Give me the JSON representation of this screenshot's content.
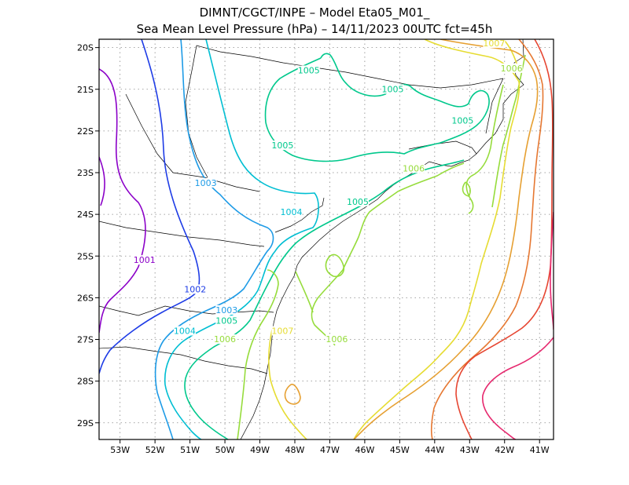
{
  "header": {
    "line1": "DIMNT/CGCT/INPE –  Model Eta05_M01_",
    "line2": "Sea Mean Level Pressure (hPa) – 14/11/2023 00UTC fct=45h"
  },
  "map": {
    "lon_range": [
      -53.6,
      -40.6
    ],
    "lat_range": [
      -29.4,
      -19.8
    ],
    "lon_ticks": [
      {
        "v": -53,
        "label": "53W"
      },
      {
        "v": -52,
        "label": "52W"
      },
      {
        "v": -51,
        "label": "51W"
      },
      {
        "v": -50,
        "label": "50W"
      },
      {
        "v": -49,
        "label": "49W"
      },
      {
        "v": -48,
        "label": "48W"
      },
      {
        "v": -47,
        "label": "47W"
      },
      {
        "v": -46,
        "label": "46W"
      },
      {
        "v": -45,
        "label": "45W"
      },
      {
        "v": -44,
        "label": "44W"
      },
      {
        "v": -43,
        "label": "43W"
      },
      {
        "v": -42,
        "label": "42W"
      },
      {
        "v": -41,
        "label": "41W"
      }
    ],
    "lat_ticks": [
      {
        "v": -20,
        "label": "20S"
      },
      {
        "v": -21,
        "label": "21S"
      },
      {
        "v": -22,
        "label": "22S"
      },
      {
        "v": -23,
        "label": "23S"
      },
      {
        "v": -24,
        "label": "24S"
      },
      {
        "v": -25,
        "label": "25S"
      },
      {
        "v": -26,
        "label": "26S"
      },
      {
        "v": -27,
        "label": "27S"
      },
      {
        "v": -28,
        "label": "28S"
      },
      {
        "v": -29,
        "label": "29S"
      }
    ],
    "grid": "dotted",
    "colors": {
      "c1001": "#8b00c8",
      "c1002": "#1e3ce6",
      "c1003": "#1e9be6",
      "c1004": "#00bed2",
      "c1005": "#00c88c",
      "c1006": "#96dc3c",
      "c1007": "#e6dc32",
      "c1008": "#e6a032",
      "c1009": "#e67832",
      "c1010": "#e64632",
      "c1011": "#e6286e"
    },
    "labels": [
      {
        "text": "1001",
        "lon": -52.3,
        "lat": -25.15,
        "color": "#8b00c8"
      },
      {
        "text": "1002",
        "lon": -50.85,
        "lat": -25.85,
        "color": "#1e3ce6"
      },
      {
        "text": "1003",
        "lon": -50.55,
        "lat": -23.3,
        "color": "#1e9be6"
      },
      {
        "text": "1003",
        "lon": -49.95,
        "lat": -26.35,
        "color": "#1e9be6"
      },
      {
        "text": "1004",
        "lon": -51.15,
        "lat": -26.85,
        "color": "#00bed2"
      },
      {
        "text": "1004",
        "lon": -48.1,
        "lat": -24.0,
        "color": "#00bed2"
      },
      {
        "text": "1005",
        "lon": -47.6,
        "lat": -20.6,
        "color": "#00c88c"
      },
      {
        "text": "1005",
        "lon": -45.2,
        "lat": -21.05,
        "color": "#00c88c"
      },
      {
        "text": "1005",
        "lon": -43.2,
        "lat": -21.8,
        "color": "#00c88c"
      },
      {
        "text": "1005",
        "lon": -48.35,
        "lat": -22.4,
        "color": "#00c88c"
      },
      {
        "text": "1005",
        "lon": -46.2,
        "lat": -23.75,
        "color": "#00c88c"
      },
      {
        "text": "1005",
        "lon": -49.95,
        "lat": -26.6,
        "color": "#00c88c"
      },
      {
        "text": "1006",
        "lon": -44.6,
        "lat": -22.95,
        "color": "#96dc3c"
      },
      {
        "text": "1006",
        "lon": -41.8,
        "lat": -20.55,
        "color": "#96dc3c"
      },
      {
        "text": "1006",
        "lon": -50.0,
        "lat": -27.05,
        "color": "#96dc3c"
      },
      {
        "text": "1006",
        "lon": -46.8,
        "lat": -27.05,
        "color": "#96dc3c"
      },
      {
        "text": "1007",
        "lon": -42.3,
        "lat": -19.95,
        "color": "#e6dc32"
      },
      {
        "text": "1007",
        "lon": -48.35,
        "lat": -26.85,
        "color": "#e6dc32"
      }
    ]
  }
}
